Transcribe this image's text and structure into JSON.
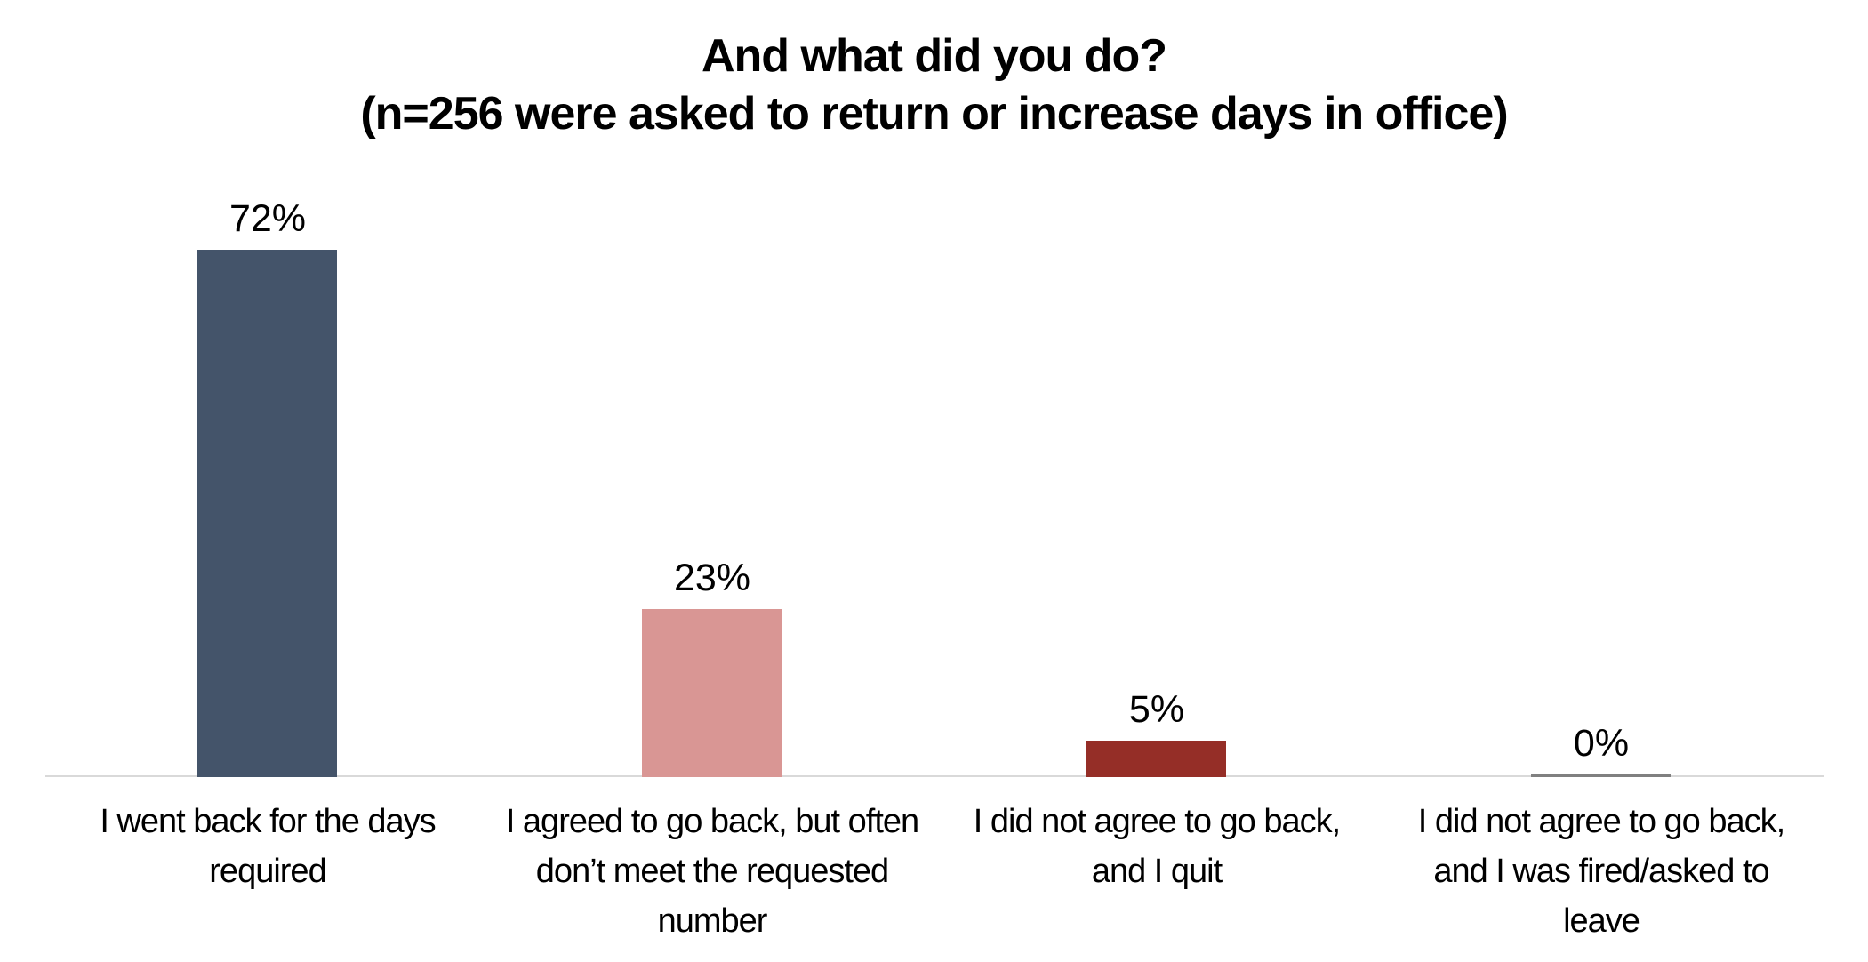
{
  "chart_data": {
    "type": "bar",
    "title": "And what did you do?",
    "subtitle": "(n=256 were asked to return or increase days in office)",
    "categories": [
      "I went back for the days\nrequired",
      "I agreed to go back, but often\ndon’t meet the requested\nnumber",
      "I did not agree to go back,\nand I quit",
      "I did not agree to go back,\nand I was fired/asked to\nleave"
    ],
    "values": [
      72,
      23,
      5,
      0
    ],
    "value_labels": [
      "72%",
      "23%",
      "5%",
      "0%"
    ],
    "bar_colors": [
      "#44546A",
      "#D99694",
      "#952E27",
      "#808080"
    ],
    "axis_line_color": "#D9D9D9",
    "text_color": "#000000",
    "background_color": "#FFFFFF",
    "xlabel": "",
    "ylabel": "",
    "y_axis_visible": false,
    "gridlines": false,
    "legend": null,
    "data_labels_position": "above-bars"
  }
}
